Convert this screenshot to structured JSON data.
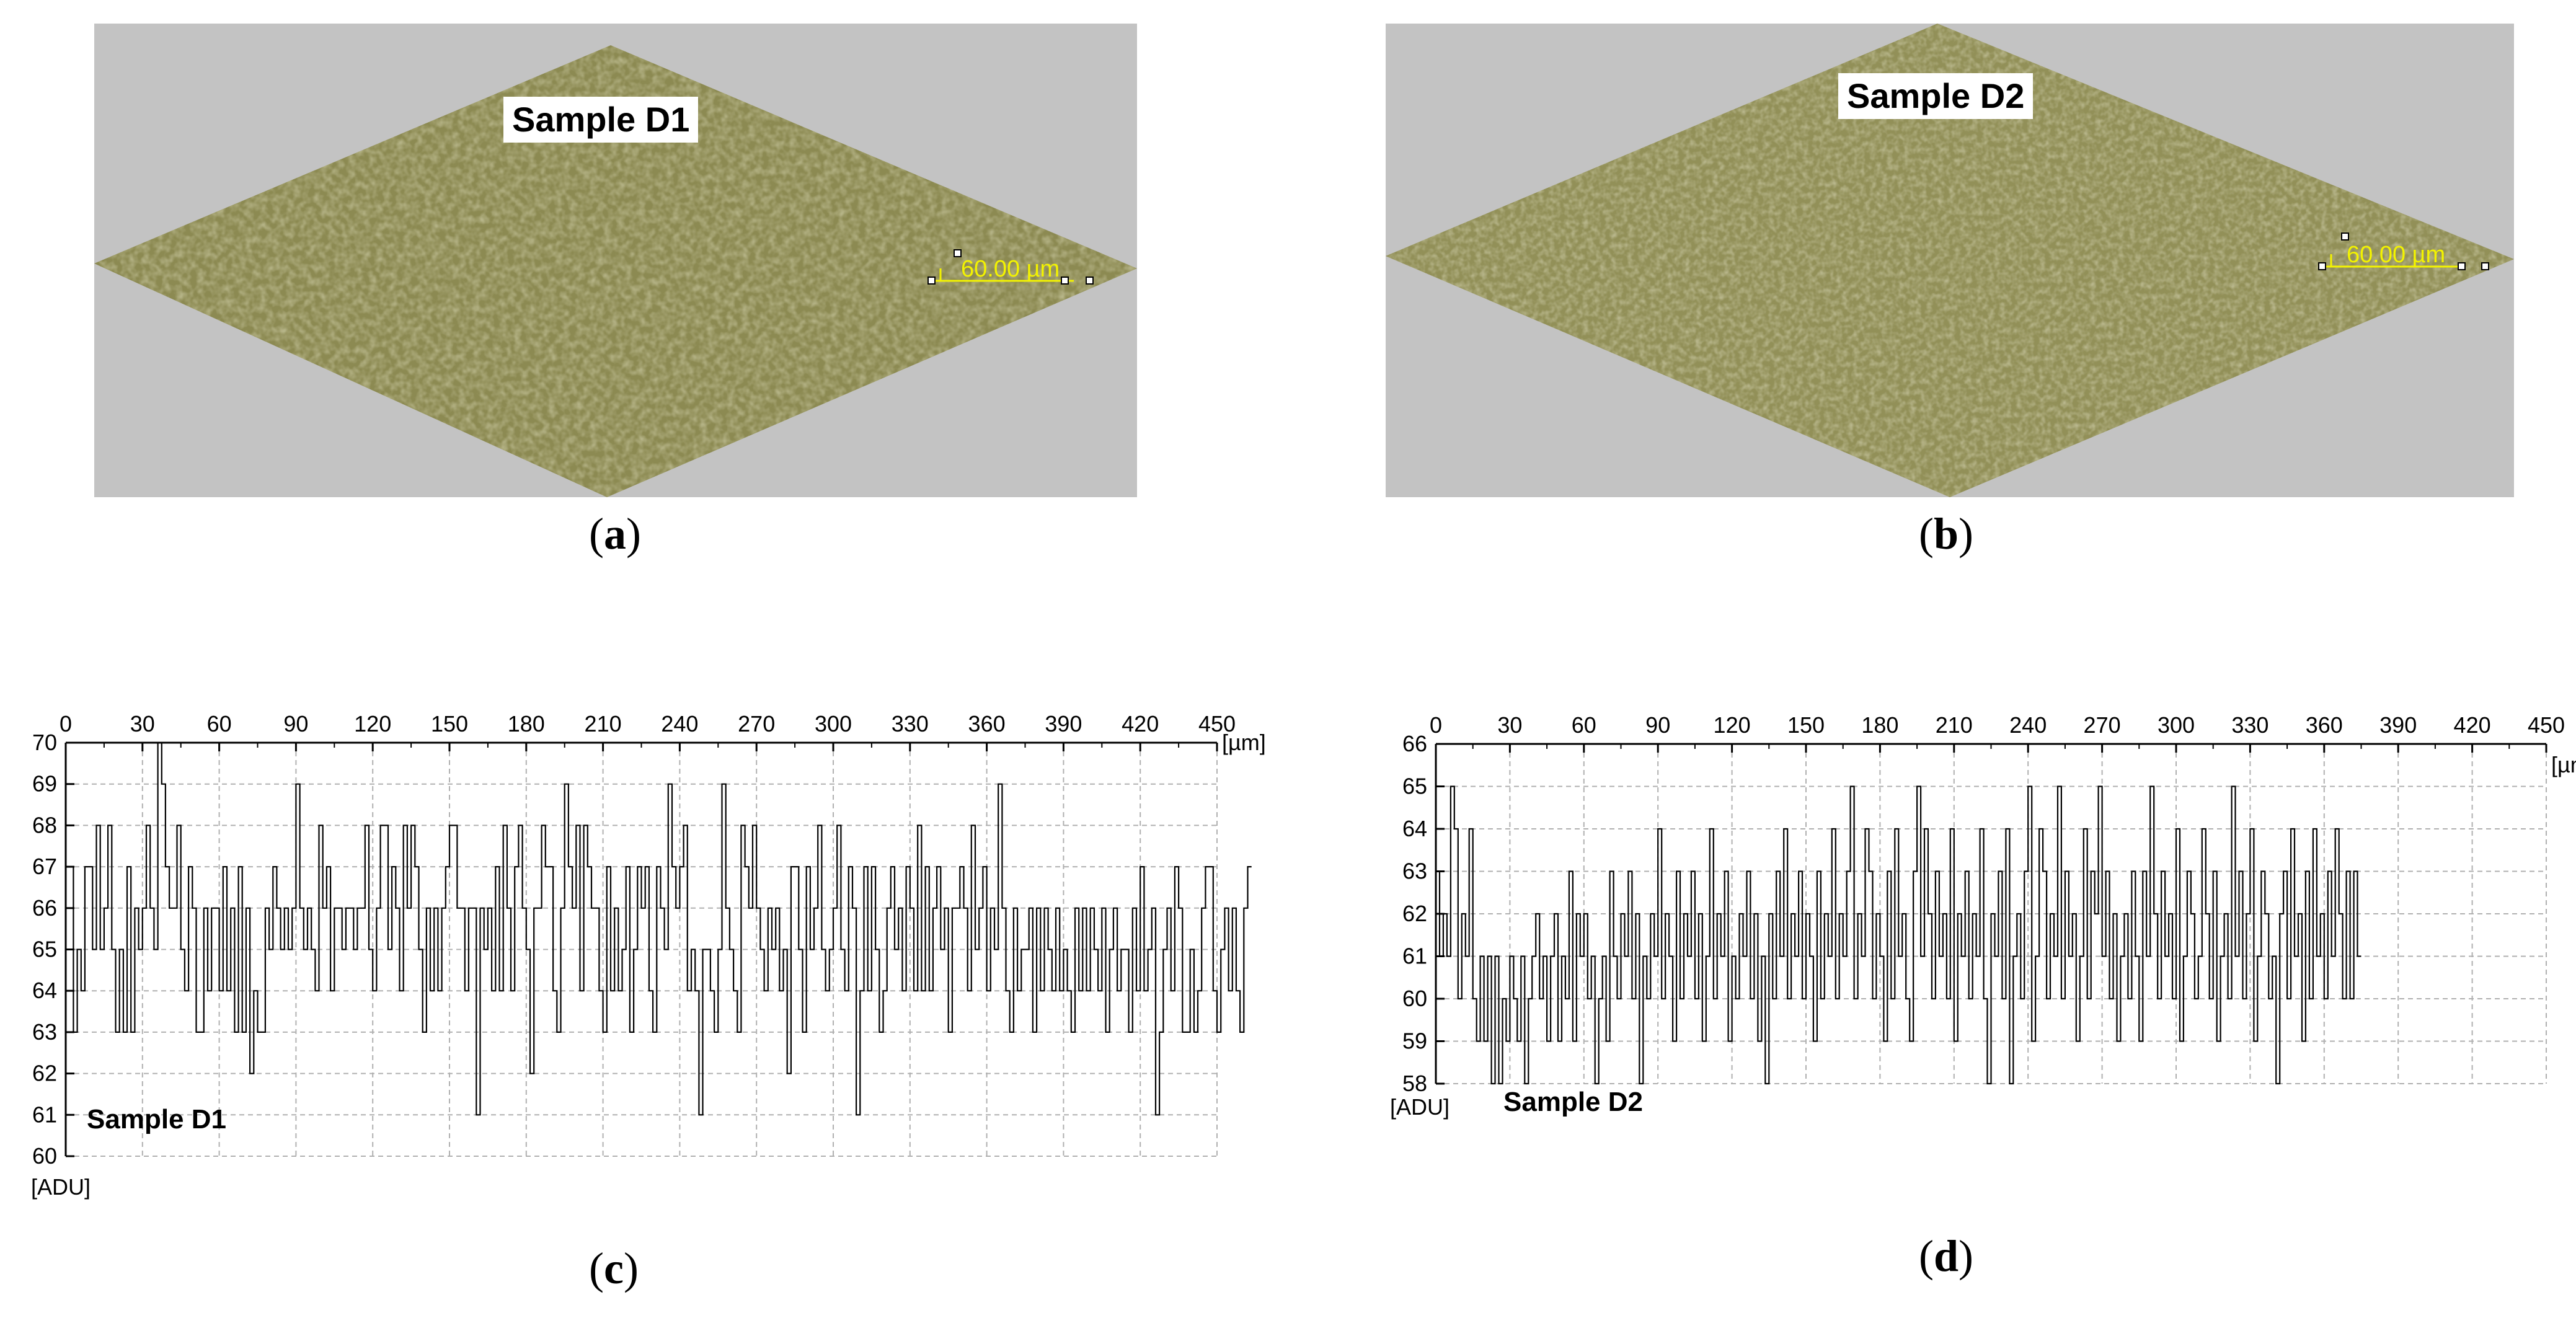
{
  "colors": {
    "surface": "#8c8a52",
    "background_grey": "#c3c3c3",
    "scale_bar": "#f3f300",
    "line": "#000000",
    "grid": "#b0b0b0"
  },
  "panels": {
    "a": {
      "sample_label": "Sample D1",
      "scale_bar": "60.00 µm",
      "caption_open": "(",
      "caption_letter": "a",
      "caption_close": ")"
    },
    "b": {
      "sample_label": "Sample D2",
      "scale_bar": "60.00 µm",
      "caption_open": "(",
      "caption_letter": "b",
      "caption_close": ")"
    },
    "c": {
      "caption_open": "(",
      "caption_letter": "c",
      "caption_close": ")"
    },
    "d": {
      "caption_open": "(",
      "caption_letter": "d",
      "caption_close": ")"
    }
  },
  "chart_data": [
    {
      "panel": "c",
      "type": "line",
      "series_label": "Sample D1",
      "x_unit": "[µm]",
      "y_unit": "[ADU]",
      "xlim": [
        0,
        450
      ],
      "ylim": [
        60,
        70
      ],
      "x_ticks": [
        0,
        30,
        60,
        90,
        120,
        150,
        180,
        210,
        240,
        270,
        300,
        330,
        360,
        390,
        420,
        450
      ],
      "y_ticks": [
        60,
        61,
        62,
        63,
        64,
        65,
        66,
        67,
        68,
        69,
        70
      ],
      "x_axis_position": "top",
      "grid": true,
      "x_step": 1.5,
      "y": [
        67,
        67,
        63,
        65,
        64,
        67,
        67,
        65,
        68,
        65,
        66,
        68,
        65,
        63,
        65,
        63,
        67,
        63,
        66,
        65,
        66,
        68,
        66,
        65,
        70,
        69,
        67,
        66,
        66,
        68,
        65,
        64,
        67,
        66,
        63,
        63,
        66,
        64,
        66,
        66,
        64,
        67,
        64,
        66,
        63,
        67,
        63,
        66,
        62,
        64,
        63,
        63,
        66,
        65,
        67,
        66,
        65,
        66,
        65,
        66,
        69,
        66,
        65,
        66,
        65,
        64,
        68,
        66,
        67,
        64,
        66,
        66,
        65,
        66,
        66,
        65,
        66,
        66,
        68,
        65,
        64,
        66,
        68,
        68,
        65,
        67,
        66,
        64,
        68,
        66,
        68,
        67,
        65,
        63,
        66,
        64,
        66,
        64,
        66,
        67,
        68,
        68,
        66,
        66,
        64,
        66,
        66,
        61,
        66,
        65,
        66,
        64,
        67,
        64,
        68,
        66,
        64,
        67,
        68,
        66,
        65,
        62,
        66,
        66,
        68,
        67,
        67,
        64,
        63,
        66,
        69,
        67,
        66,
        68,
        64,
        68,
        67,
        66,
        66,
        64,
        63,
        67,
        64,
        66,
        64,
        65,
        67,
        63,
        65,
        67,
        66,
        67,
        64,
        63,
        67,
        66,
        65,
        69,
        67,
        66,
        67,
        68,
        64,
        65,
        64,
        61,
        65,
        65,
        64,
        63,
        65,
        69,
        66,
        65,
        64,
        63,
        68,
        67,
        66,
        68,
        66,
        65,
        64,
        66,
        65,
        66,
        64,
        65,
        62,
        67,
        67,
        65,
        63,
        67,
        65,
        66,
        68,
        65,
        64,
        65,
        66,
        68,
        65,
        64,
        67,
        66,
        61,
        64,
        67,
        64,
        67,
        65,
        63,
        64,
        66,
        67,
        65,
        66,
        64,
        67,
        66,
        64,
        68,
        64,
        67,
        64,
        66,
        67,
        65,
        66,
        63,
        66,
        66,
        67,
        66,
        64,
        68,
        65,
        66,
        67,
        64,
        66,
        65,
        69,
        66,
        64,
        63,
        66,
        64,
        65,
        65,
        66,
        63,
        66,
        64,
        66,
        65,
        64,
        66,
        64,
        65,
        64,
        63,
        66,
        64,
        66,
        64,
        66,
        65,
        64,
        66,
        63,
        65,
        66,
        64,
        65,
        65,
        63,
        66,
        64,
        67,
        64,
        65,
        66,
        61,
        63,
        65,
        66,
        64,
        67,
        66,
        63,
        63,
        65,
        63,
        64,
        66,
        67,
        67,
        64,
        63,
        65,
        66,
        64,
        66,
        64,
        63,
        66,
        67
      ]
    },
    {
      "panel": "d",
      "type": "line",
      "series_label": "Sample D2",
      "x_unit": "[µm]",
      "y_unit": "[ADU]",
      "xlim": [
        0,
        450
      ],
      "ylim": [
        58,
        66
      ],
      "x_ticks": [
        0,
        30,
        60,
        90,
        120,
        150,
        180,
        210,
        240,
        270,
        300,
        330,
        360,
        390,
        420,
        450
      ],
      "y_ticks": [
        58,
        59,
        60,
        61,
        62,
        63,
        64,
        65,
        66
      ],
      "x_axis_position": "top",
      "grid": true,
      "x_step": 1.5,
      "y": [
        63,
        61,
        62,
        61,
        65,
        64,
        60,
        62,
        61,
        64,
        60,
        59,
        61,
        59,
        61,
        58,
        61,
        58,
        60,
        59,
        61,
        60,
        59,
        61,
        58,
        60,
        61,
        62,
        60,
        61,
        59,
        61,
        62,
        59,
        61,
        60,
        63,
        59,
        62,
        61,
        62,
        60,
        61,
        58,
        60,
        61,
        59,
        63,
        61,
        60,
        62,
        61,
        63,
        60,
        62,
        58,
        61,
        60,
        62,
        61,
        64,
        60,
        62,
        61,
        59,
        63,
        60,
        62,
        61,
        63,
        60,
        62,
        59,
        61,
        64,
        60,
        62,
        61,
        63,
        59,
        61,
        60,
        62,
        61,
        63,
        60,
        62,
        59,
        61,
        58,
        62,
        60,
        63,
        61,
        64,
        60,
        62,
        61,
        63,
        60,
        62,
        61,
        59,
        63,
        60,
        62,
        61,
        64,
        60,
        62,
        61,
        63,
        65,
        60,
        62,
        61,
        64,
        63,
        60,
        62,
        61,
        59,
        63,
        60,
        64,
        61,
        62,
        60,
        59,
        63,
        65,
        61,
        64,
        62,
        60,
        63,
        61,
        62,
        60,
        64,
        59,
        62,
        61,
        63,
        60,
        62,
        61,
        64,
        60,
        58,
        62,
        61,
        63,
        60,
        64,
        58,
        61,
        62,
        60,
        63,
        65,
        59,
        61,
        64,
        63,
        60,
        62,
        61,
        65,
        60,
        63,
        61,
        62,
        59,
        61,
        64,
        60,
        63,
        62,
        65,
        61,
        63,
        60,
        62,
        59,
        61,
        62,
        60,
        63,
        61,
        59,
        63,
        61,
        65,
        62,
        60,
        63,
        61,
        62,
        60,
        64,
        59,
        61,
        63,
        62,
        60,
        61,
        64,
        62,
        60,
        63,
        59,
        61,
        62,
        60,
        65,
        61,
        63,
        60,
        62,
        64,
        59,
        61,
        63,
        62,
        60,
        61,
        58,
        62,
        63,
        60,
        64,
        61,
        62,
        59,
        63,
        60,
        64,
        61,
        62,
        60,
        63,
        61,
        64,
        62,
        60,
        63,
        60,
        63,
        61
      ]
    }
  ]
}
